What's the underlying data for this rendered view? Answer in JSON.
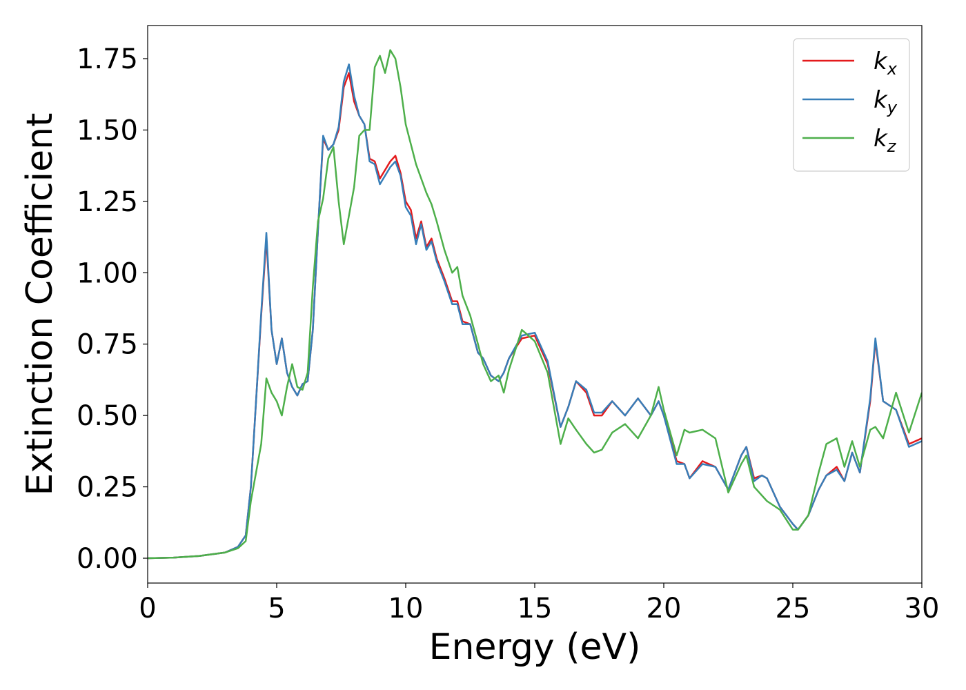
{
  "chart_data": {
    "type": "line",
    "xlabel": "Energy (eV)",
    "ylabel": "Extinction Coefficient",
    "x": [
      0,
      1,
      2,
      3,
      3.5,
      3.8,
      4.0,
      4.2,
      4.4,
      4.6,
      4.8,
      5.0,
      5.2,
      5.4,
      5.6,
      5.8,
      6.0,
      6.2,
      6.4,
      6.6,
      6.8,
      7.0,
      7.2,
      7.4,
      7.6,
      7.8,
      8.0,
      8.2,
      8.4,
      8.6,
      8.8,
      9.0,
      9.2,
      9.4,
      9.6,
      9.8,
      10.0,
      10.2,
      10.4,
      10.6,
      10.8,
      11.0,
      11.2,
      11.5,
      11.8,
      12.0,
      12.2,
      12.5,
      12.8,
      13.0,
      13.3,
      13.6,
      13.8,
      14.0,
      14.5,
      15.0,
      15.5,
      16.0,
      16.3,
      16.6,
      17.0,
      17.3,
      17.6,
      18.0,
      18.5,
      19.0,
      19.5,
      19.8,
      20.0,
      20.5,
      20.8,
      21.0,
      21.5,
      22.0,
      22.5,
      23.0,
      23.2,
      23.5,
      23.8,
      24.0,
      24.5,
      25.0,
      25.2,
      25.6,
      26.0,
      26.3,
      26.7,
      27.0,
      27.3,
      27.6,
      28.0,
      28.2,
      28.5,
      29.0,
      29.5,
      30.0
    ],
    "series": [
      {
        "name": "k_x",
        "color": "#e41a1c",
        "values": [
          0,
          0.002,
          0.008,
          0.02,
          0.04,
          0.08,
          0.25,
          0.55,
          0.85,
          1.12,
          0.8,
          0.68,
          0.77,
          0.65,
          0.6,
          0.57,
          0.61,
          0.62,
          0.8,
          1.15,
          1.47,
          1.43,
          1.45,
          1.5,
          1.65,
          1.7,
          1.6,
          1.55,
          1.52,
          1.4,
          1.39,
          1.33,
          1.36,
          1.39,
          1.41,
          1.35,
          1.25,
          1.22,
          1.12,
          1.18,
          1.09,
          1.12,
          1.05,
          0.98,
          0.9,
          0.9,
          0.83,
          0.82,
          0.72,
          0.7,
          0.64,
          0.62,
          0.65,
          0.7,
          0.77,
          0.78,
          0.68,
          0.46,
          0.53,
          0.62,
          0.58,
          0.5,
          0.5,
          0.55,
          0.5,
          0.56,
          0.5,
          0.55,
          0.5,
          0.34,
          0.33,
          0.28,
          0.34,
          0.32,
          0.24,
          0.36,
          0.39,
          0.28,
          0.29,
          0.28,
          0.18,
          0.12,
          0.1,
          0.15,
          0.24,
          0.29,
          0.32,
          0.27,
          0.37,
          0.3,
          0.55,
          0.76,
          0.55,
          0.52,
          0.4,
          0.42
        ]
      },
      {
        "name": "k_y",
        "color": "#377eb8",
        "values": [
          0,
          0.002,
          0.008,
          0.02,
          0.04,
          0.08,
          0.25,
          0.55,
          0.86,
          1.14,
          0.8,
          0.68,
          0.77,
          0.65,
          0.6,
          0.57,
          0.61,
          0.62,
          0.8,
          1.15,
          1.48,
          1.43,
          1.45,
          1.51,
          1.67,
          1.73,
          1.62,
          1.55,
          1.52,
          1.39,
          1.38,
          1.31,
          1.34,
          1.37,
          1.39,
          1.34,
          1.23,
          1.2,
          1.1,
          1.17,
          1.08,
          1.11,
          1.04,
          0.97,
          0.89,
          0.89,
          0.82,
          0.82,
          0.72,
          0.7,
          0.64,
          0.62,
          0.65,
          0.7,
          0.78,
          0.79,
          0.69,
          0.46,
          0.53,
          0.62,
          0.59,
          0.51,
          0.51,
          0.55,
          0.5,
          0.56,
          0.5,
          0.55,
          0.5,
          0.33,
          0.33,
          0.28,
          0.33,
          0.32,
          0.24,
          0.36,
          0.39,
          0.27,
          0.29,
          0.28,
          0.18,
          0.12,
          0.1,
          0.15,
          0.24,
          0.29,
          0.31,
          0.27,
          0.37,
          0.3,
          0.56,
          0.77,
          0.55,
          0.52,
          0.39,
          0.41
        ]
      },
      {
        "name": "k_z",
        "color": "#4daf4a",
        "values": [
          0,
          0.002,
          0.008,
          0.02,
          0.035,
          0.06,
          0.2,
          0.3,
          0.4,
          0.63,
          0.58,
          0.55,
          0.5,
          0.6,
          0.68,
          0.6,
          0.59,
          0.65,
          0.95,
          1.18,
          1.26,
          1.4,
          1.44,
          1.25,
          1.1,
          1.2,
          1.3,
          1.48,
          1.5,
          1.5,
          1.72,
          1.76,
          1.7,
          1.78,
          1.75,
          1.65,
          1.52,
          1.45,
          1.38,
          1.33,
          1.28,
          1.24,
          1.18,
          1.08,
          1.0,
          1.02,
          0.92,
          0.85,
          0.75,
          0.68,
          0.62,
          0.64,
          0.58,
          0.66,
          0.8,
          0.76,
          0.65,
          0.4,
          0.49,
          0.45,
          0.4,
          0.37,
          0.38,
          0.44,
          0.47,
          0.42,
          0.5,
          0.6,
          0.52,
          0.36,
          0.45,
          0.44,
          0.45,
          0.42,
          0.23,
          0.33,
          0.36,
          0.25,
          0.22,
          0.2,
          0.17,
          0.1,
          0.1,
          0.15,
          0.3,
          0.4,
          0.42,
          0.32,
          0.41,
          0.32,
          0.45,
          0.46,
          0.42,
          0.58,
          0.44,
          0.58
        ]
      }
    ],
    "xlim": [
      0,
      30
    ],
    "xticks": [
      0,
      5,
      10,
      15,
      20,
      25,
      30
    ],
    "ylim": [
      -0.087,
      1.866
    ],
    "yticks": [
      {
        "value": 0,
        "label": "0.00"
      },
      {
        "value": 0.25,
        "label": "0.25"
      },
      {
        "value": 0.5,
        "label": "0.50"
      },
      {
        "value": 0.75,
        "label": "0.75"
      },
      {
        "value": 1,
        "label": "1.00"
      },
      {
        "value": 1.25,
        "label": "1.25"
      },
      {
        "value": 1.5,
        "label": "1.50"
      },
      {
        "value": 1.75,
        "label": "1.75"
      }
    ],
    "legend": "upper right",
    "grid": false
  }
}
